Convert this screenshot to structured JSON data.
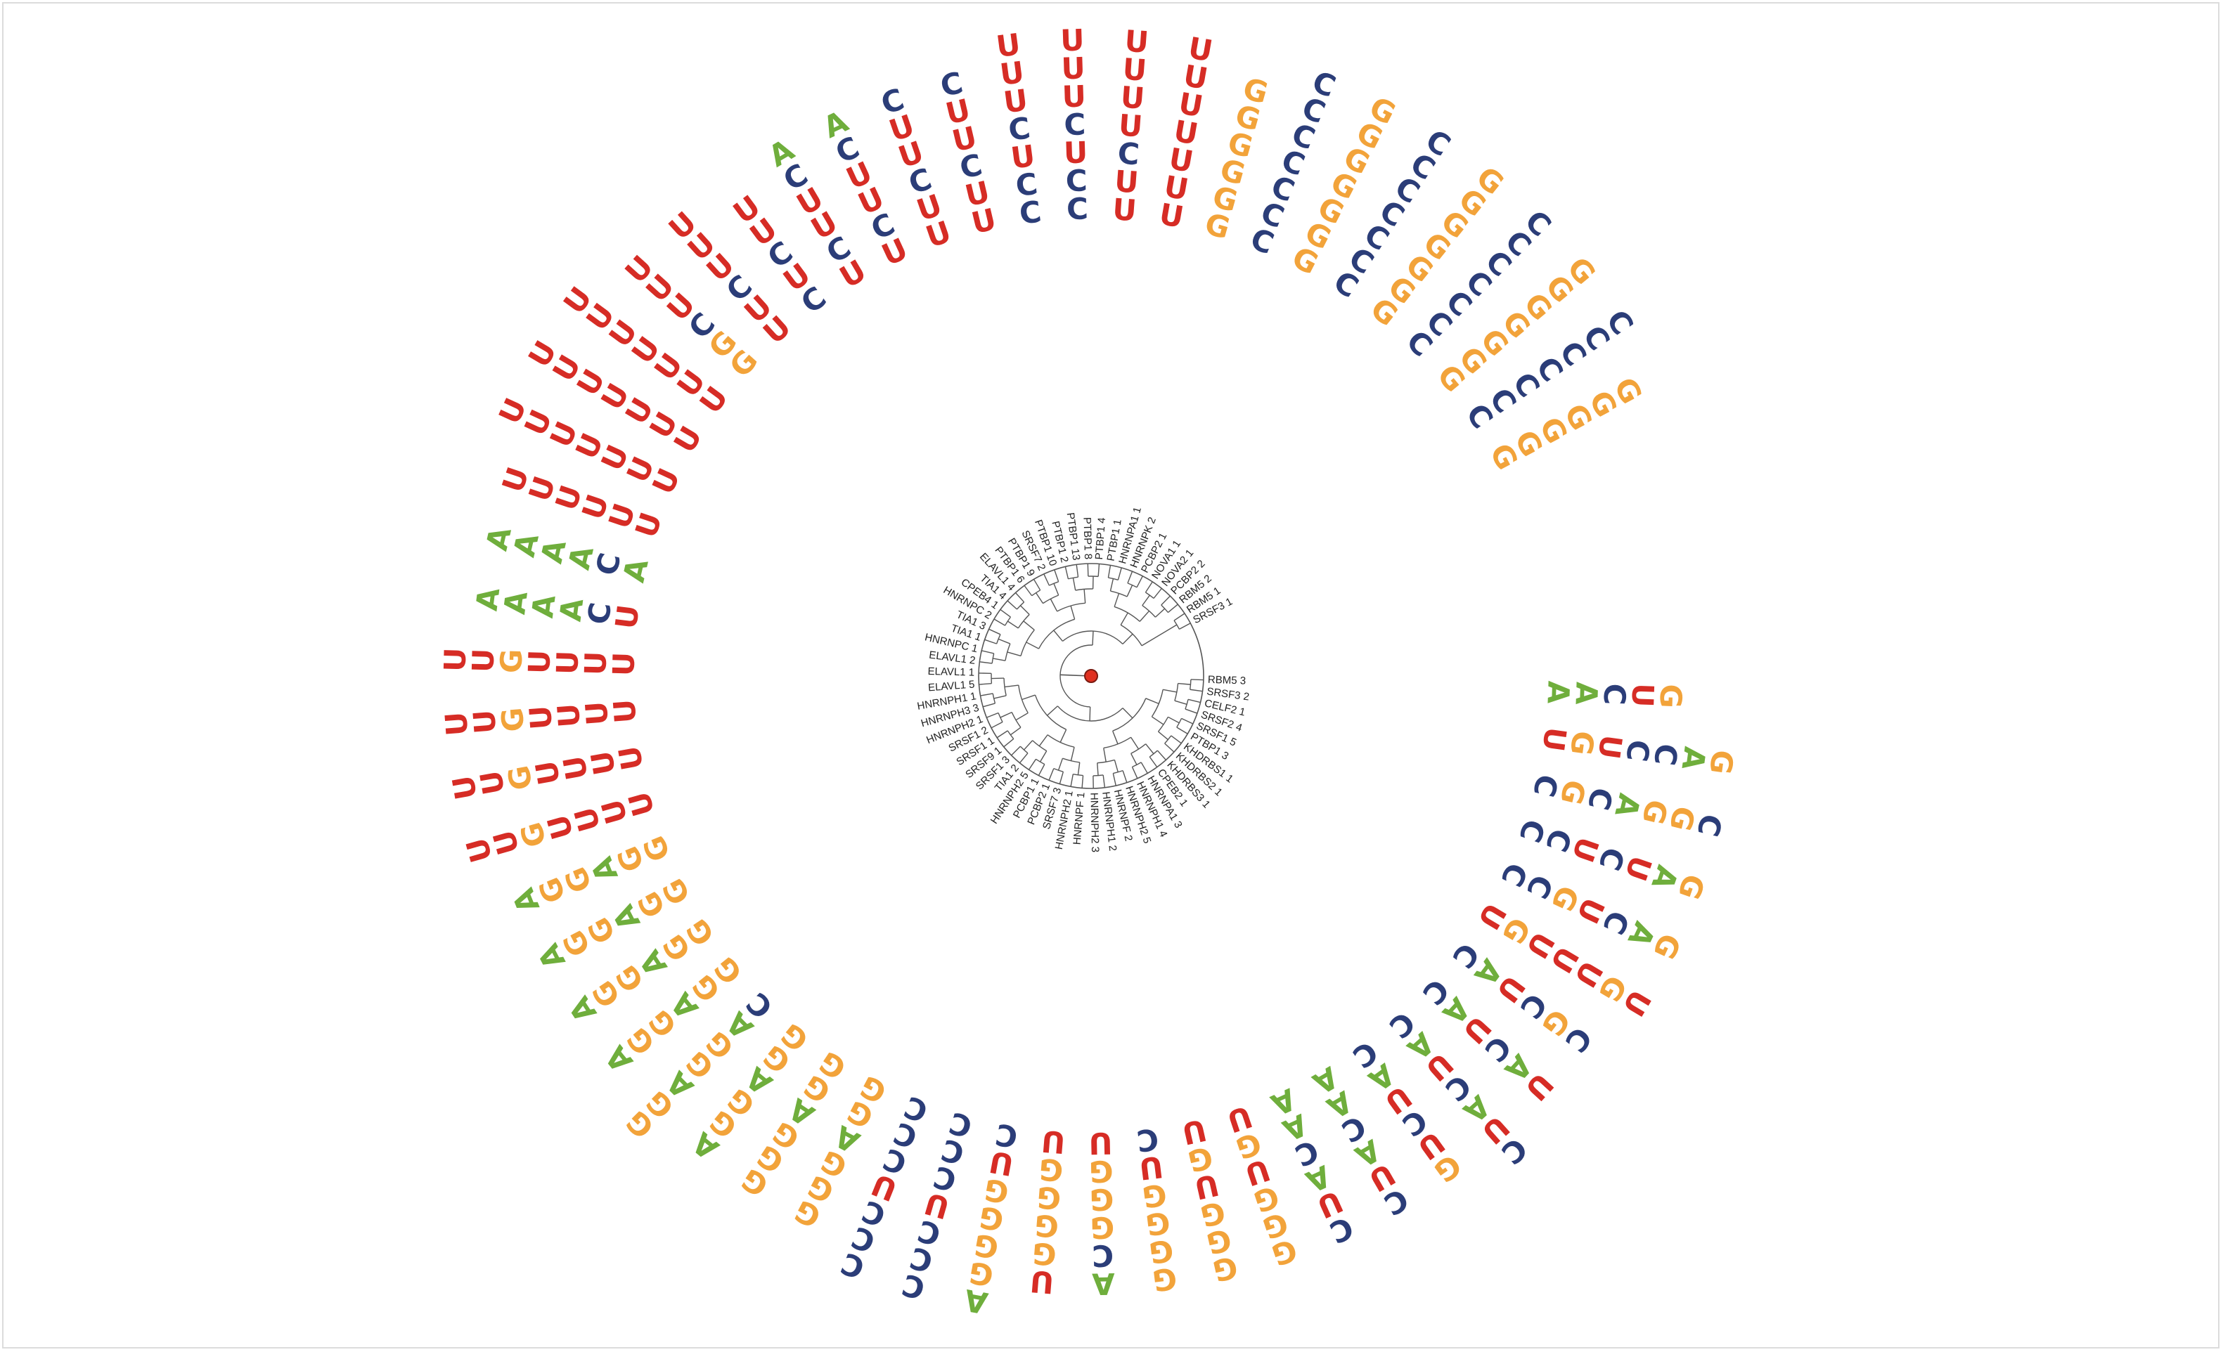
{
  "colors": {
    "A": "#6fae3c",
    "C": "#2b3d78",
    "G": "#f2a33a",
    "U": "#d62c25",
    "branch": "#555555",
    "root": "#e03020",
    "root_stroke": "#7a1a10"
  },
  "leaves": [
    {
      "label": "RBM5 3",
      "motif": "AACUG"
    },
    {
      "label": "SRSF3 2",
      "motif": "UGUCCAG"
    },
    {
      "label": "CELF2 1",
      "motif": "CGCAGGC"
    },
    {
      "label": "SRSF2 4",
      "motif": "CCUCUAG"
    },
    {
      "label": "SRSF1 5",
      "motif": "CCGUCAG"
    },
    {
      "label": "PTBP1 3",
      "motif": "UGUUUGU"
    },
    {
      "label": "KHDRBS1 1",
      "motif": "CAUCGC"
    },
    {
      "label": "KHDRBS2 1",
      "motif": "CAUCAU"
    },
    {
      "label": "KHDRBS3 1",
      "motif": "CAUCAUC"
    },
    {
      "label": "CPEB2 1",
      "motif": "CAUCUG"
    },
    {
      "label": "HNRNPA1 3",
      "motif": "AACAUC"
    },
    {
      "label": "HNRNPH1 4",
      "motif": "AACAUC"
    },
    {
      "label": "HNRNPH2 5",
      "motif": "UGUGGG"
    },
    {
      "label": "HNRNPF 2",
      "motif": "UGUGGG"
    },
    {
      "label": "HNRNPH1 2",
      "motif": "CUGGGG"
    },
    {
      "label": "HNRNPH2 3",
      "motif": "UGGGCA"
    },
    {
      "label": "HNRNPF 1",
      "motif": "UGGGGU"
    },
    {
      "label": "HNRNPH2 1",
      "motif": "CUGGGGA"
    },
    {
      "label": "SRSF7 3",
      "motif": "CCCUCCC"
    },
    {
      "label": "PCBP2 1",
      "motif": "CCCUCCC"
    },
    {
      "label": "PCBP1 1",
      "motif": "GGAGGG"
    },
    {
      "label": "HNRNPH2 5",
      "motif": "GGAGGG"
    },
    {
      "label": "TIA1 2",
      "motif": "GGAGGA"
    },
    {
      "label": "SRSF1 3",
      "motif": "CAGGAGG"
    },
    {
      "label": "SRSF9 1",
      "motif": "GGAGGA"
    },
    {
      "label": "SRSF1 1",
      "motif": "GGAGGA"
    },
    {
      "label": "SRSF1 2",
      "motif": "GGAGGA"
    },
    {
      "label": "HNRNPH2 1",
      "motif": "GGAGGA"
    },
    {
      "label": "HNRNPH3 3",
      "motif": "UUUUGUU"
    },
    {
      "label": "HNRNPH1 1",
      "motif": "UUUUGUU"
    },
    {
      "label": "ELAVL1 5",
      "motif": "UUUUGUU"
    },
    {
      "label": "ELAVL1 1",
      "motif": "UUUUGUU"
    },
    {
      "label": "ELAVL1 2",
      "motif": "UCAAAA"
    },
    {
      "label": "HNRNPC 1",
      "motif": "ACAAAA"
    },
    {
      "label": "TIA1 1",
      "motif": "UUUUUU"
    },
    {
      "label": "TIA1 3",
      "motif": "UUUUUUU"
    },
    {
      "label": "HNRNPC 2",
      "motif": "UUUUUUU"
    },
    {
      "label": "CPEB4 1",
      "motif": "UUUUUUU"
    },
    {
      "label": "TIA1 4",
      "motif": "GGCUUU"
    },
    {
      "label": "ELAVL1 4",
      "motif": "UUCUUU"
    },
    {
      "label": "PTBP1 6",
      "motif": "CUCUU"
    },
    {
      "label": "PTBP1 9",
      "motif": "UCUUCA"
    },
    {
      "label": "SRSF7 2",
      "motif": "UCUUCA"
    },
    {
      "label": "PTBP1 10",
      "motif": "UUCUUC"
    },
    {
      "label": "PTBP1 2",
      "motif": "UUCUUC"
    },
    {
      "label": "PTBP1 13",
      "motif": "CCUCUUU"
    },
    {
      "label": "PTBP1 8",
      "motif": "CCUCUUU"
    },
    {
      "label": "PTBP1 4",
      "motif": "UUCUUUU"
    },
    {
      "label": "PTBP1 1",
      "motif": "UUUUUUU"
    },
    {
      "label": "HNRNPA1 1",
      "motif": "GGGGGG"
    },
    {
      "label": "HNRNPK 2",
      "motif": "CCCCCCC"
    },
    {
      "label": "PCBP2 1",
      "motif": "GGGGGGG"
    },
    {
      "label": "NOVA1 1",
      "motif": "CCCCCCC"
    },
    {
      "label": "NOVA2 1",
      "motif": "GGGGGGG"
    },
    {
      "label": "PCBP2 2",
      "motif": "CCCCCCC"
    },
    {
      "label": "RBM5 2",
      "motif": "GGGGGGG"
    },
    {
      "label": "RBM5 1",
      "motif": "CCCCCCC"
    },
    {
      "label": "SRSF3 1",
      "motif": "GGGGGG"
    }
  ]
}
